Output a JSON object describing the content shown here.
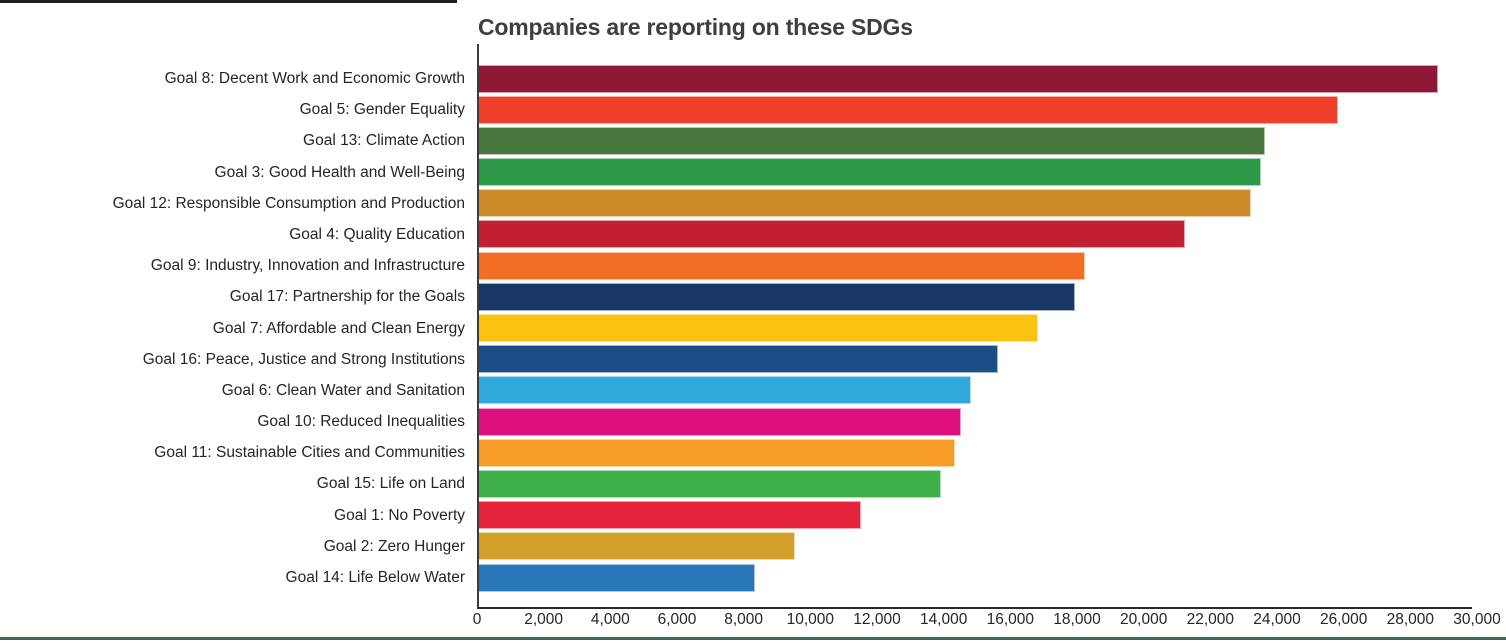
{
  "title": "Companies are reporting on these SDGs",
  "chart_data": {
    "type": "bar",
    "orientation": "horizontal",
    "title": "Companies are reporting on these SDGs",
    "xlabel": "",
    "ylabel": "",
    "xlim": [
      0,
      30000
    ],
    "grid": false,
    "legend": "none",
    "categories": [
      "Goal 8: Decent Work and Economic Growth",
      "Goal 5: Gender Equality",
      "Goal 13: Climate Action",
      "Goal 3: Good Health and Well-Being",
      "Goal 12: Responsible Consumption and Production",
      "Goal 4: Quality Education",
      "Goal 9: Industry, Innovation and Infrastructure",
      "Goal 17: Partnership for the Goals",
      "Goal 7: Affordable and Clean Energy",
      "Goal 16: Peace, Justice and Strong Institutions",
      "Goal 6: Clean Water and Sanitation",
      "Goal 10: Reduced Inequalities",
      "Goal 11: Sustainable Cities and Communities",
      "Goal 15: Life on Land",
      "Goal 1: No Poverty",
      "Goal 2: Zero Hunger",
      "Goal 14: Life Below Water"
    ],
    "values": [
      28800,
      25800,
      23600,
      23500,
      23200,
      21200,
      18200,
      17900,
      16800,
      15600,
      14800,
      14500,
      14300,
      13900,
      11500,
      9500,
      8300
    ],
    "colors": [
      "#8F1838",
      "#EF402B",
      "#48773E",
      "#2D9A47",
      "#CD8B2A",
      "#C31F33",
      "#F36D25",
      "#183668",
      "#F9C20F",
      "#1B4E87",
      "#2FA8DC",
      "#DD0F7E",
      "#F89D28",
      "#3EB049",
      "#E5243B",
      "#D3A029",
      "#2877B8"
    ],
    "x_ticks": [
      0,
      2000,
      4000,
      6000,
      8000,
      10000,
      12000,
      14000,
      16000,
      18000,
      20000,
      22000,
      24000,
      26000,
      28000,
      30000
    ],
    "x_tick_labels": [
      "0",
      "2,000",
      "4,000",
      "6,000",
      "8,000",
      "10,000",
      "12,000",
      "14,000",
      "16,000",
      "18,000",
      "20,000",
      "22,000",
      "24,000",
      "26,000",
      "28,000",
      "30,000"
    ]
  }
}
